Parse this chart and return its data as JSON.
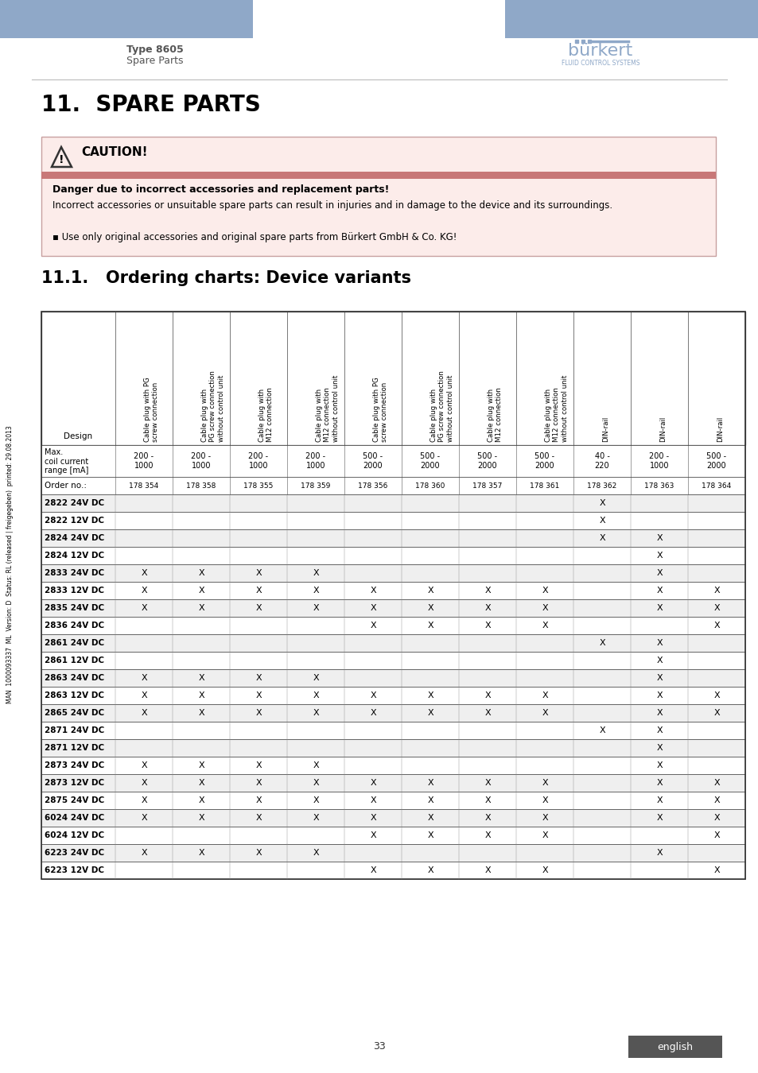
{
  "header_left_text": "Type 8605",
  "header_sub_text": "Spare Parts",
  "section_title": "11.  SPARE PARTS",
  "subsection_title": "11.1.   Ordering charts: Device variants",
  "caution_title": "CAUTION!",
  "caution_bold": "Danger due to incorrect accessories and replacement parts!",
  "caution_body": "Incorrect accessories or unsuitable spare parts can result in injuries and in damage to the device and its surroundings.",
  "caution_bullet": "Use only original accessories and original spare parts from Bürkert GmbH & Co. KG!",
  "sidebar_text": "MAN  1000093337  ML  Version: D  Status: RL (released | freigegeben)  printed: 29.08.2013",
  "page_number": "33",
  "footer_lang": "english",
  "header_color": "#8fa8c8",
  "coil_current": [
    "",
    "200 -\n1000",
    "200 -\n1000",
    "200 -\n1000",
    "200 -\n1000",
    "500 -\n2000",
    "500 -\n2000",
    "500 -\n2000",
    "500 -\n2000",
    "40 -\n220",
    "200 -\n1000",
    "500 -\n2000"
  ],
  "order_nos": [
    "",
    "178 354",
    "178 358",
    "178 355",
    "178 359",
    "178 356",
    "178 360",
    "178 357",
    "178 361",
    "178 362",
    "178 363",
    "178 364"
  ],
  "designs": [
    "2822 24V DC",
    "2822 12V DC",
    "2824 24V DC",
    "2824 12V DC",
    "2833 24V DC",
    "2833 12V DC",
    "2835 24V DC",
    "2836 24V DC",
    "2861 24V DC",
    "2861 12V DC",
    "2863 24V DC",
    "2863 12V DC",
    "2865 24V DC",
    "2871 24V DC",
    "2871 12V DC",
    "2873 24V DC",
    "2873 12V DC",
    "2875 24V DC",
    "6024 24V DC",
    "6024 12V DC",
    "6223 24V DC",
    "6223 12V DC"
  ],
  "table_data": [
    [
      false,
      false,
      false,
      false,
      false,
      false,
      false,
      false,
      true,
      false,
      false
    ],
    [
      false,
      false,
      false,
      false,
      false,
      false,
      false,
      false,
      true,
      false,
      false
    ],
    [
      false,
      false,
      false,
      false,
      false,
      false,
      false,
      false,
      true,
      true,
      false
    ],
    [
      false,
      false,
      false,
      false,
      false,
      false,
      false,
      false,
      false,
      true,
      false
    ],
    [
      true,
      true,
      true,
      true,
      false,
      false,
      false,
      false,
      false,
      true,
      false
    ],
    [
      true,
      true,
      true,
      true,
      true,
      true,
      true,
      true,
      false,
      true,
      true
    ],
    [
      true,
      true,
      true,
      true,
      true,
      true,
      true,
      true,
      false,
      true,
      true
    ],
    [
      false,
      false,
      false,
      false,
      true,
      true,
      true,
      true,
      false,
      false,
      true
    ],
    [
      false,
      false,
      false,
      false,
      false,
      false,
      false,
      false,
      true,
      true,
      false
    ],
    [
      false,
      false,
      false,
      false,
      false,
      false,
      false,
      false,
      false,
      true,
      false
    ],
    [
      true,
      true,
      true,
      true,
      false,
      false,
      false,
      false,
      false,
      true,
      false
    ],
    [
      true,
      true,
      true,
      true,
      true,
      true,
      true,
      true,
      false,
      true,
      true
    ],
    [
      true,
      true,
      true,
      true,
      true,
      true,
      true,
      true,
      false,
      true,
      true
    ],
    [
      false,
      false,
      false,
      false,
      false,
      false,
      false,
      false,
      true,
      true,
      false
    ],
    [
      false,
      false,
      false,
      false,
      false,
      false,
      false,
      false,
      false,
      true,
      false
    ],
    [
      true,
      true,
      true,
      true,
      false,
      false,
      false,
      false,
      false,
      true,
      false
    ],
    [
      true,
      true,
      true,
      true,
      true,
      true,
      true,
      true,
      false,
      true,
      true
    ],
    [
      true,
      true,
      true,
      true,
      true,
      true,
      true,
      true,
      false,
      true,
      true
    ],
    [
      true,
      true,
      true,
      true,
      true,
      true,
      true,
      true,
      false,
      true,
      true
    ],
    [
      false,
      false,
      false,
      false,
      true,
      true,
      true,
      true,
      false,
      false,
      true
    ],
    [
      true,
      true,
      true,
      true,
      false,
      false,
      false,
      false,
      false,
      true,
      false
    ],
    [
      false,
      false,
      false,
      false,
      true,
      true,
      true,
      true,
      false,
      false,
      true
    ]
  ]
}
